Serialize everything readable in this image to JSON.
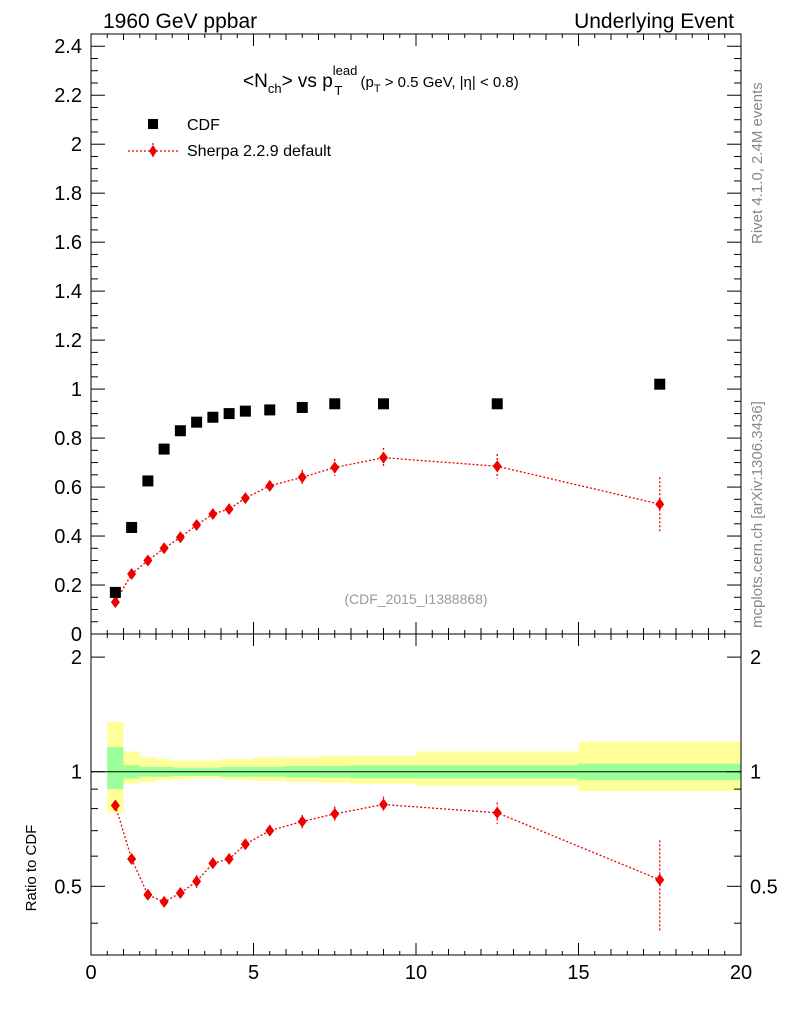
{
  "header": {
    "left": "1960 GeV ppbar",
    "right": "Underlying Event"
  },
  "side": {
    "rivet": "Rivet 4.1.0,  2.4M events",
    "mcplots": "mcplots.cern.ch [arXiv:1306.3436]"
  },
  "title": {
    "prefix": "<N",
    "ch_sub": "ch",
    "middle": "> vs p",
    "lead_sup": "lead",
    "t_sub": "T",
    "cut_open": " (p",
    "cut_t_sub": "T",
    "cut_rest": " > 0.5 GeV, |η| < 0.8)"
  },
  "watermark": "(CDF_2015_I1388868)",
  "legend": {
    "cdf": "CDF",
    "mc": "Sherpa 2.2.9 default"
  },
  "ratio_ylabel": "Ratio to CDF",
  "colors": {
    "data": "#000000",
    "mc": "#ee0000",
    "band_inner": "#99ff99",
    "band_outer": "#ffff99"
  },
  "chart_data": [
    {
      "type": "scatter",
      "panel": "main",
      "x": [
        0.75,
        1.25,
        1.75,
        2.25,
        2.75,
        3.25,
        3.75,
        4.25,
        4.75,
        5.5,
        6.5,
        7.5,
        9.0,
        12.5,
        17.5
      ],
      "xlim": [
        0,
        20
      ],
      "ylim": [
        0,
        2.45
      ],
      "yticks": [
        0,
        0.2,
        0.4,
        0.6,
        0.8,
        1,
        1.2,
        1.4,
        1.6,
        1.8,
        2,
        2.2,
        2.4
      ],
      "ytick_labels": [
        "0",
        "0.2",
        "0.4",
        "0.6",
        "0.8",
        "1",
        "1.2",
        "1.4",
        "1.6",
        "1.8",
        "2",
        "2.2",
        "2.4"
      ],
      "series": [
        {
          "name": "CDF",
          "values": [
            0.17,
            0.435,
            0.625,
            0.755,
            0.83,
            0.865,
            0.885,
            0.9,
            0.91,
            0.915,
            0.925,
            0.94,
            0.94,
            0.94,
            1.02
          ]
        },
        {
          "name": "Sherpa 2.2.9 default",
          "values": [
            0.13,
            0.245,
            0.3,
            0.35,
            0.395,
            0.445,
            0.49,
            0.51,
            0.555,
            0.605,
            0.64,
            0.68,
            0.72,
            0.685,
            0.53
          ],
          "errors": [
            0.015,
            0.015,
            0.015,
            0.015,
            0.015,
            0.02,
            0.02,
            0.02,
            0.02,
            0.02,
            0.03,
            0.035,
            0.04,
            0.05,
            0.11
          ]
        }
      ]
    },
    {
      "type": "scatter",
      "panel": "ratio",
      "ylabel": "Ratio to CDF",
      "xlim": [
        0,
        20
      ],
      "ylim": [
        0.33,
        2.3
      ],
      "yticks": [
        0.5,
        1,
        2
      ],
      "ytick_labels": [
        "0.5",
        "1",
        "2"
      ],
      "xticks": [
        0,
        5,
        10,
        15,
        20
      ],
      "xtick_labels": [
        "0",
        "5",
        "10",
        "15",
        "20"
      ],
      "x": [
        0.75,
        1.25,
        1.75,
        2.25,
        2.75,
        3.25,
        3.75,
        4.25,
        4.75,
        5.5,
        6.5,
        7.5,
        9.0,
        12.5,
        17.5
      ],
      "bin_edges": [
        0.5,
        1.0,
        1.5,
        2.0,
        2.5,
        3.0,
        3.5,
        4.0,
        4.5,
        5.0,
        6.0,
        7.0,
        8.0,
        10.0,
        15.0,
        20.0
      ],
      "band_inner": [
        [
          0.9,
          1.16
        ],
        [
          0.96,
          1.04
        ],
        [
          0.97,
          1.03
        ],
        [
          0.97,
          1.03
        ],
        [
          0.975,
          1.025
        ],
        [
          0.975,
          1.025
        ],
        [
          0.975,
          1.025
        ],
        [
          0.97,
          1.03
        ],
        [
          0.97,
          1.03
        ],
        [
          0.97,
          1.03
        ],
        [
          0.965,
          1.035
        ],
        [
          0.965,
          1.035
        ],
        [
          0.96,
          1.04
        ],
        [
          0.96,
          1.04
        ],
        [
          0.95,
          1.05
        ]
      ],
      "band_outer": [
        [
          0.78,
          1.35
        ],
        [
          0.93,
          1.13
        ],
        [
          0.94,
          1.09
        ],
        [
          0.95,
          1.08
        ],
        [
          0.955,
          1.07
        ],
        [
          0.96,
          1.07
        ],
        [
          0.96,
          1.07
        ],
        [
          0.955,
          1.08
        ],
        [
          0.95,
          1.08
        ],
        [
          0.945,
          1.09
        ],
        [
          0.94,
          1.09
        ],
        [
          0.935,
          1.1
        ],
        [
          0.93,
          1.1
        ],
        [
          0.92,
          1.13
        ],
        [
          0.89,
          1.2
        ]
      ],
      "series": [
        {
          "name": "Sherpa 2.2.9 default",
          "values": [
            0.815,
            0.59,
            0.475,
            0.455,
            0.48,
            0.515,
            0.575,
            0.59,
            0.645,
            0.7,
            0.74,
            0.775,
            0.82,
            0.78,
            0.52
          ],
          "errors": [
            0.02,
            0.02,
            0.015,
            0.015,
            0.015,
            0.02,
            0.02,
            0.02,
            0.02,
            0.025,
            0.03,
            0.035,
            0.04,
            0.05,
            0.14
          ]
        }
      ]
    }
  ]
}
